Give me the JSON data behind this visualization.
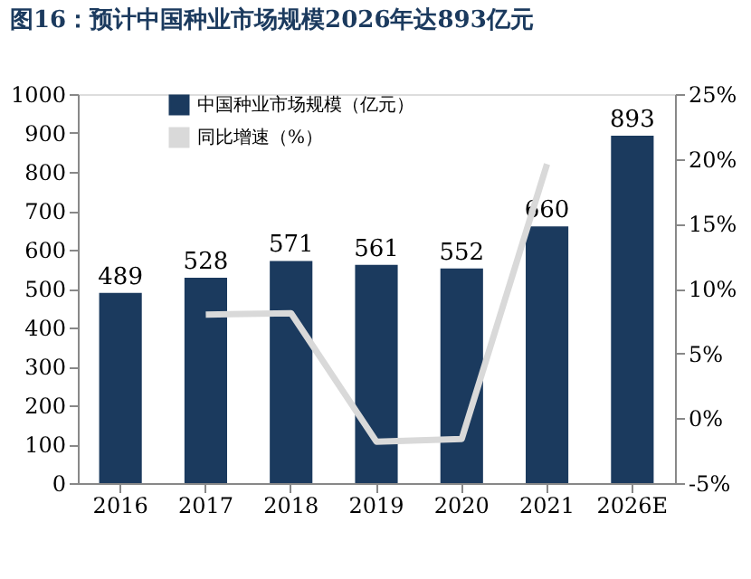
{
  "chart_data": {
    "type": "bar",
    "title": "图16：预计中国种业市场规模2026年达893亿元",
    "categories": [
      "2016",
      "2017",
      "2018",
      "2019",
      "2020",
      "2021",
      "2026E"
    ],
    "series": [
      {
        "name": "中国种业市场规模（亿元）",
        "color": "#1b3a5e",
        "values": [
          489,
          528,
          571,
          561,
          552,
          660,
          893
        ],
        "value_labels": [
          "489",
          "528",
          "571",
          "561",
          "552",
          "660",
          "893"
        ]
      },
      {
        "name": "同比增速（%）",
        "type": "line",
        "axis": "y2",
        "color": "#d9d9d9",
        "values": [
          null,
          8.0,
          8.1,
          -1.8,
          -1.6,
          19.6,
          null
        ]
      }
    ],
    "ylim": [
      0,
      1000
    ],
    "yticks": [
      0,
      100,
      200,
      300,
      400,
      500,
      600,
      700,
      800,
      900,
      1000
    ],
    "y2lim": [
      -5,
      25
    ],
    "y2ticks": [
      {
        "value": -5,
        "label": "-5%"
      },
      {
        "value": 0,
        "label": "0%"
      },
      {
        "value": 5,
        "label": "5%"
      },
      {
        "value": 10,
        "label": "10%"
      },
      {
        "value": 15,
        "label": "15%"
      },
      {
        "value": 20,
        "label": "20%"
      },
      {
        "value": 25,
        "label": "25%"
      }
    ],
    "grid": false,
    "legend": "top left",
    "marker": "none",
    "line_style": "solid"
  }
}
